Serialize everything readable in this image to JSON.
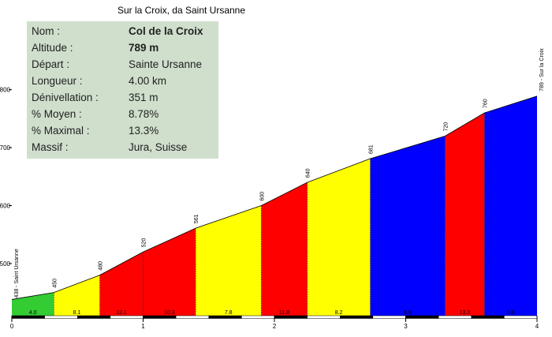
{
  "title": "Sur la Croix, da Saint Ursanne",
  "info": [
    {
      "label": "Nom :",
      "value": "Col de la Croix",
      "bold": true
    },
    {
      "label": "Altitude :",
      "value": "789 m",
      "bold": true
    },
    {
      "label": "Départ :",
      "value": "Sainte Ursanne",
      "bold": false
    },
    {
      "label": "Longueur :",
      "value": "4.00 km",
      "bold": false
    },
    {
      "label": "Dénivellation :",
      "value": "351 m",
      "bold": false
    },
    {
      "label": "% Moyen :",
      "value": "8.78%",
      "bold": false
    },
    {
      "label": "% Maximal :",
      "value": "13.3%",
      "bold": false
    },
    {
      "label": "Massif :",
      "value": "Jura, Suisse",
      "bold": false
    }
  ],
  "colors": {
    "green": "#33cc33",
    "yellow": "#ffff00",
    "red": "#ff0000",
    "blue": "#0000ff",
    "info_bg": "#cfdfcc"
  },
  "chart_data": {
    "type": "area",
    "xlim": [
      0,
      4
    ],
    "ylim": [
      410,
      805
    ],
    "x_ticks": [
      "0",
      "1",
      "2",
      "3",
      "4"
    ],
    "y_ticks": [
      "500",
      "600",
      "700",
      "800"
    ],
    "points": [
      {
        "x": 0.0,
        "y": 438
      },
      {
        "x": 0.32,
        "y": 450
      },
      {
        "x": 0.67,
        "y": 480
      },
      {
        "x": 1.0,
        "y": 520
      },
      {
        "x": 1.4,
        "y": 561
      },
      {
        "x": 1.9,
        "y": 600
      },
      {
        "x": 2.25,
        "y": 640
      },
      {
        "x": 2.73,
        "y": 681
      },
      {
        "x": 3.3,
        "y": 720
      },
      {
        "x": 3.6,
        "y": 760
      },
      {
        "x": 4.0,
        "y": 789
      }
    ],
    "point_labels": [
      "438 - Saint Ursanne",
      "450",
      "480",
      "520",
      "561",
      "600",
      "640",
      "681",
      "720",
      "760",
      "789 - Sur la Croix"
    ],
    "segments": [
      {
        "grade": "4.0",
        "color": "green"
      },
      {
        "grade": "8.1",
        "color": "yellow"
      },
      {
        "grade": "12.1",
        "color": "red"
      },
      {
        "grade": "10.3",
        "color": "red"
      },
      {
        "grade": "7.8",
        "color": "yellow"
      },
      {
        "grade": "11.8",
        "color": "red"
      },
      {
        "grade": "8.2",
        "color": "yellow"
      },
      {
        "grade": "6.9",
        "color": "blue"
      },
      {
        "grade": "13.3",
        "color": "red"
      },
      {
        "grade": "6.8",
        "color": "blue"
      }
    ]
  }
}
